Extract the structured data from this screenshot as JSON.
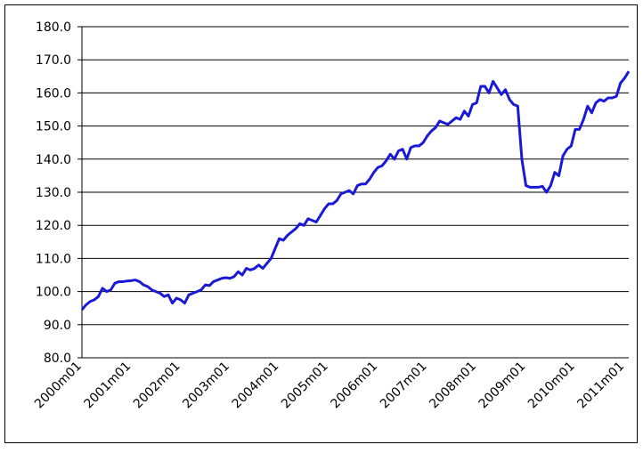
{
  "chart_data": {
    "type": "line",
    "color": "#1a1ad6",
    "grid": true,
    "ylim": [
      80,
      180
    ],
    "yticks": [
      {
        "value": 80,
        "label": "80.0"
      },
      {
        "value": 90,
        "label": "90.0"
      },
      {
        "value": 100,
        "label": "100.0"
      },
      {
        "value": 110,
        "label": "110.0"
      },
      {
        "value": 120,
        "label": "120.0"
      },
      {
        "value": 130,
        "label": "130.0"
      },
      {
        "value": 140,
        "label": "140.0"
      },
      {
        "value": 150,
        "label": "150.0"
      },
      {
        "value": 160,
        "label": "160.0"
      },
      {
        "value": 170,
        "label": "170.0"
      },
      {
        "value": 180,
        "label": "180.0"
      }
    ],
    "categories": [
      "2000m01",
      null,
      null,
      null,
      null,
      null,
      null,
      null,
      null,
      null,
      null,
      null,
      "2001m01",
      null,
      null,
      null,
      null,
      null,
      null,
      null,
      null,
      null,
      null,
      null,
      "2002m01",
      null,
      null,
      null,
      null,
      null,
      null,
      null,
      null,
      null,
      null,
      null,
      "2003m01",
      null,
      null,
      null,
      null,
      null,
      null,
      null,
      null,
      null,
      null,
      null,
      "2004m01",
      null,
      null,
      null,
      null,
      null,
      null,
      null,
      null,
      null,
      null,
      null,
      "2005m01",
      null,
      null,
      null,
      null,
      null,
      null,
      null,
      null,
      null,
      null,
      null,
      "2006m01",
      null,
      null,
      null,
      null,
      null,
      null,
      null,
      null,
      null,
      null,
      null,
      "2007m01",
      null,
      null,
      null,
      null,
      null,
      null,
      null,
      null,
      null,
      null,
      null,
      "2008m01",
      null,
      null,
      null,
      null,
      null,
      null,
      null,
      null,
      null,
      null,
      null,
      "2009m01",
      null,
      null,
      null,
      null,
      null,
      null,
      null,
      null,
      null,
      null,
      null,
      "2010m01",
      null,
      null,
      null,
      null,
      null,
      null,
      null,
      null,
      null,
      null,
      null,
      "2011m01",
      null
    ],
    "values": [
      94.5,
      96,
      97,
      97.5,
      98.5,
      101,
      100,
      100.5,
      102.5,
      103,
      103,
      103.2,
      103.3,
      103.5,
      103,
      102,
      101.5,
      100.5,
      100,
      99.5,
      98.5,
      99,
      96.5,
      98,
      97.5,
      96.5,
      99,
      99.5,
      100,
      100.5,
      102,
      101.8,
      103,
      103.5,
      104,
      104.2,
      104,
      104.5,
      106,
      105,
      107,
      106.5,
      107,
      108,
      107,
      108.5,
      110,
      113,
      116,
      115.5,
      117,
      118,
      119,
      120.5,
      120,
      122,
      121.5,
      121,
      123,
      125,
      126.5,
      126.5,
      127.5,
      129.5,
      130,
      130.5,
      129.5,
      132,
      132.5,
      132.5,
      134,
      136,
      137.5,
      138,
      139.5,
      141.5,
      140,
      142.5,
      143,
      140,
      143.5,
      144,
      144,
      145,
      147,
      148.5,
      149.5,
      151.5,
      151,
      150.5,
      151.5,
      152.5,
      152,
      154.5,
      153,
      156.5,
      157,
      162,
      162,
      160,
      163.5,
      161.5,
      159.5,
      161,
      158,
      156.5,
      156,
      140,
      132,
      131.5,
      131.5,
      131.5,
      131.8,
      130,
      132,
      136,
      135,
      141,
      143,
      144,
      149,
      149,
      152,
      156,
      154,
      157,
      158,
      157.5,
      158.5,
      158.5,
      159,
      163,
      164.5,
      166.5
    ]
  }
}
